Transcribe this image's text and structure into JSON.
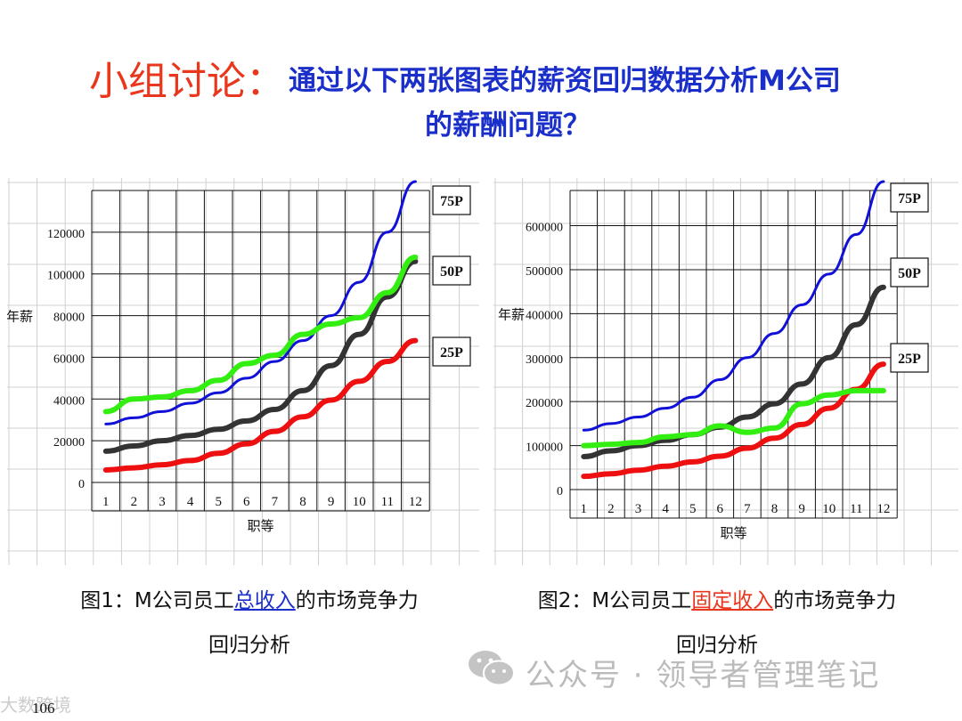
{
  "title": {
    "prefix": "小组讨论：",
    "line1": "通过以下两张图表的薪资回归数据分析M公司",
    "line2": "的薪酬问题？"
  },
  "colors": {
    "p75": "#1010d8",
    "p50": "#333333",
    "p25": "#ee1010",
    "company": "#33ee11",
    "title_red": "#e8371c",
    "title_blue": "#1a2fc9"
  },
  "chart_data": [
    {
      "type": "line",
      "caption_prefix": "图1：M公司员工",
      "caption_highlight": "总收入",
      "caption_suffix": "的市场竞争力",
      "caption_line2": "回归分析",
      "highlight_color": "#1a2fc9",
      "ylabel": "年薪",
      "xlabel": "职等",
      "x": [
        1,
        2,
        3,
        4,
        5,
        6,
        7,
        8,
        9,
        10,
        11,
        12
      ],
      "ylim": [
        0,
        140000
      ],
      "yticks": [
        0,
        20000,
        40000,
        60000,
        80000,
        100000,
        120000
      ],
      "series_labels": [
        "75P",
        "50P",
        "25P"
      ],
      "series": [
        {
          "name": "75P",
          "values": [
            28000,
            31000,
            34000,
            38000,
            43000,
            50000,
            58000,
            68000,
            80000,
            96000,
            120000,
            146000
          ]
        },
        {
          "name": "50P",
          "values": [
            15000,
            17500,
            20000,
            22500,
            25500,
            29500,
            35000,
            44000,
            56000,
            71000,
            89000,
            106000
          ]
        },
        {
          "name": "25P",
          "values": [
            6000,
            7000,
            8500,
            10500,
            14000,
            18500,
            24500,
            31500,
            39500,
            48500,
            58000,
            68000
          ]
        },
        {
          "name": "",
          "values": [
            34000,
            40000,
            41000,
            44000,
            49000,
            57000,
            61000,
            71000,
            76000,
            79000,
            91000,
            108000
          ]
        }
      ]
    },
    {
      "type": "line",
      "caption_prefix": "图2：M公司员工",
      "caption_highlight": "固定收入",
      "caption_suffix": "的市场竞争力",
      "caption_line2": "回归分析",
      "highlight_color": "#e8371c",
      "ylabel": "年薪",
      "xlabel": "职等",
      "x": [
        1,
        2,
        3,
        4,
        5,
        6,
        7,
        8,
        9,
        10,
        11,
        12
      ],
      "ylim": [
        0,
        680000
      ],
      "yticks": [
        0,
        100000,
        200000,
        300000,
        400000,
        500000,
        600000
      ],
      "series_labels": [
        "75P",
        "50P",
        "25P"
      ],
      "series": [
        {
          "name": "75P",
          "values": [
            135000,
            150000,
            165000,
            185000,
            210000,
            250000,
            300000,
            355000,
            420000,
            490000,
            580000,
            720000
          ]
        },
        {
          "name": "50P",
          "values": [
            75000,
            88000,
            100000,
            112000,
            125000,
            142000,
            165000,
            195000,
            240000,
            300000,
            375000,
            460000
          ]
        },
        {
          "name": "25P",
          "values": [
            30000,
            36000,
            44000,
            53000,
            63000,
            76000,
            94000,
            117000,
            148000,
            185000,
            228000,
            285000
          ]
        },
        {
          "name": "",
          "values": [
            100000,
            103000,
            107000,
            120000,
            125000,
            145000,
            130000,
            140000,
            195000,
            215000,
            225000,
            225000
          ]
        }
      ]
    }
  ],
  "watermark": {
    "text": "公众号 · 领导者管理笔记",
    "icon": "wechat-icon"
  },
  "corner_watermark": "大数跨境",
  "page_number": "106"
}
